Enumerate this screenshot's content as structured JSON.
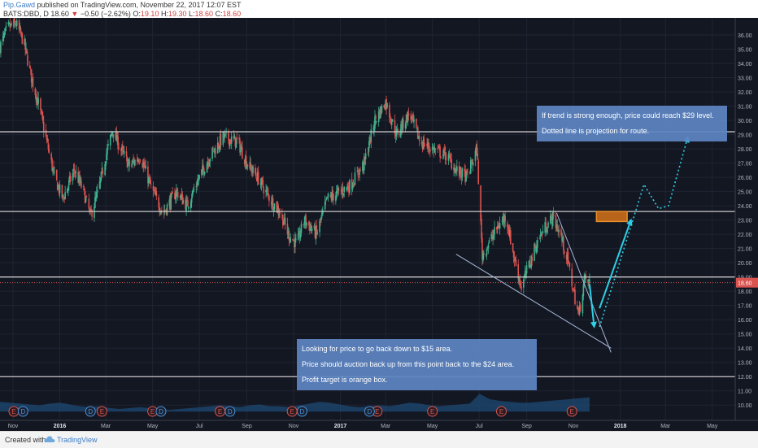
{
  "header": {
    "author": "Pip.Gawd",
    "published": "published on TradingView.com, November 22, 2017 12:07 EST",
    "symbol": "BATS:DBD, D",
    "last": "18.60",
    "change": "−0.50 (−2.62%)",
    "o_label": "O:",
    "o": "19.10",
    "h_label": "H:",
    "h": "19.30",
    "l_label": "L:",
    "l": "18.60",
    "c_label": "C:",
    "c": "18.60"
  },
  "footer": {
    "created": "Created with",
    "brand": "TradingView"
  },
  "colors": {
    "background": "#131722",
    "grid": "#1f2432",
    "up": "#3fb38e",
    "down": "#d9534f",
    "hline": "#c8c8c8",
    "price_line": "#d9534f",
    "annotation_box": "#5d86c3",
    "arrow": "#2fd0e6",
    "target_box": "#e8902a",
    "axis_text": "#b2b5be"
  },
  "chart_data": {
    "type": "candlestick",
    "symbol": "BATS:DBD",
    "interval": "D",
    "ylim": [
      9.5,
      37.2
    ],
    "x_axis": {
      "range": [
        "2015-10-15",
        "2018-05-31"
      ],
      "ticks": [
        {
          "date": "2015-11-01",
          "label": "Nov"
        },
        {
          "date": "2016-01-01",
          "label": "2016"
        },
        {
          "date": "2016-03-01",
          "label": "Mar"
        },
        {
          "date": "2016-05-01",
          "label": "May"
        },
        {
          "date": "2016-07-01",
          "label": "Jul"
        },
        {
          "date": "2016-09-01",
          "label": "Sep"
        },
        {
          "date": "2016-11-01",
          "label": "Nov"
        },
        {
          "date": "2017-01-01",
          "label": "2017"
        },
        {
          "date": "2017-03-01",
          "label": "Mar"
        },
        {
          "date": "2017-05-01",
          "label": "May"
        },
        {
          "date": "2017-07-01",
          "label": "Jul"
        },
        {
          "date": "2017-09-01",
          "label": "Sep"
        },
        {
          "date": "2017-11-01",
          "label": "Nov"
        },
        {
          "date": "2018-01-01",
          "label": "2018"
        },
        {
          "date": "2018-03-01",
          "label": "Mar"
        },
        {
          "date": "2018-05-01",
          "label": "May"
        }
      ]
    },
    "y_ticks": [
      "10.00",
      "11.00",
      "12.00",
      "13.00",
      "14.00",
      "15.00",
      "16.00",
      "17.00",
      "18.00",
      "19.00",
      "20.00",
      "21.00",
      "22.00",
      "23.00",
      "24.00",
      "25.00",
      "26.00",
      "27.00",
      "28.00",
      "29.00",
      "30.00",
      "31.00",
      "32.00",
      "33.00",
      "34.00",
      "35.00",
      "36.00"
    ],
    "last_price": {
      "value": 18.6,
      "label": "18.60"
    },
    "price_path": [
      [
        "2015-10-15",
        35.2
      ],
      [
        "2015-10-25",
        36.5
      ],
      [
        "2015-11-05",
        36.8
      ],
      [
        "2015-11-15",
        35.5
      ],
      [
        "2015-11-25",
        33.0
      ],
      [
        "2015-12-05",
        31.0
      ],
      [
        "2015-12-15",
        28.5
      ],
      [
        "2015-12-25",
        26.0
      ],
      [
        "2016-01-05",
        24.5
      ],
      [
        "2016-01-20",
        26.5
      ],
      [
        "2016-02-01",
        25.0
      ],
      [
        "2016-02-10",
        23.3
      ],
      [
        "2016-02-20",
        25.0
      ],
      [
        "2016-03-01",
        27.5
      ],
      [
        "2016-03-10",
        29.3
      ],
      [
        "2016-03-20",
        28.0
      ],
      [
        "2016-04-01",
        26.8
      ],
      [
        "2016-04-15",
        27.5
      ],
      [
        "2016-05-01",
        25.0
      ],
      [
        "2016-05-15",
        23.5
      ],
      [
        "2016-06-01",
        25.0
      ],
      [
        "2016-06-15",
        24.0
      ],
      [
        "2016-07-01",
        26.0
      ],
      [
        "2016-07-15",
        27.5
      ],
      [
        "2016-08-01",
        28.8
      ],
      [
        "2016-08-20",
        28.5
      ],
      [
        "2016-09-01",
        27.0
      ],
      [
        "2016-09-15",
        26.0
      ],
      [
        "2016-10-01",
        24.5
      ],
      [
        "2016-10-15",
        23.5
      ],
      [
        "2016-10-25",
        22.0
      ],
      [
        "2016-11-05",
        21.3
      ],
      [
        "2016-11-15",
        23.0
      ],
      [
        "2016-12-01",
        22.0
      ],
      [
        "2016-12-15",
        24.5
      ],
      [
        "2017-01-01",
        25.0
      ],
      [
        "2017-01-15",
        25.5
      ],
      [
        "2017-02-01",
        27.0
      ],
      [
        "2017-02-15",
        30.0
      ],
      [
        "2017-03-01",
        31.3
      ],
      [
        "2017-03-15",
        29.0
      ],
      [
        "2017-04-01",
        30.5
      ],
      [
        "2017-04-15",
        28.5
      ],
      [
        "2017-05-01",
        28.0
      ],
      [
        "2017-05-20",
        27.5
      ],
      [
        "2017-06-01",
        26.5
      ],
      [
        "2017-06-15",
        26.0
      ],
      [
        "2017-06-28",
        28.0
      ],
      [
        "2017-07-01",
        24.8
      ],
      [
        "2017-07-05",
        20.5
      ],
      [
        "2017-07-15",
        21.5
      ],
      [
        "2017-07-25",
        22.5
      ],
      [
        "2017-08-05",
        23.3
      ],
      [
        "2017-08-15",
        20.5
      ],
      [
        "2017-08-25",
        18.3
      ],
      [
        "2017-09-05",
        20.0
      ],
      [
        "2017-09-15",
        21.5
      ],
      [
        "2017-09-25",
        22.5
      ],
      [
        "2017-10-05",
        23.2
      ],
      [
        "2017-10-15",
        22.0
      ],
      [
        "2017-10-25",
        20.0
      ],
      [
        "2017-11-01",
        18.0
      ],
      [
        "2017-11-08",
        16.3
      ],
      [
        "2017-11-15",
        18.8
      ],
      [
        "2017-11-22",
        18.6
      ]
    ],
    "horizontal_lines": [
      29.2,
      23.6,
      19.0,
      12.0
    ],
    "trend_lines": [
      {
        "from": [
          "2017-06-01",
          20.6
        ],
        "to": [
          "2017-12-20",
          14.0
        ]
      },
      {
        "from": [
          "2017-10-10",
          23.5
        ],
        "to": [
          "2017-12-20",
          13.7
        ]
      }
    ],
    "arrows_solid": [
      {
        "from": [
          "2017-11-22",
          18.5
        ],
        "to": [
          "2017-11-28",
          15.5
        ]
      },
      {
        "from": [
          "2017-12-05",
          16.8
        ],
        "to": [
          "2018-01-15",
          23.0
        ]
      }
    ],
    "projection_dotted": [
      [
        "2017-12-05",
        15.5
      ],
      [
        "2018-02-01",
        25.5
      ],
      [
        "2018-02-20",
        23.8
      ],
      [
        "2018-03-05",
        24.0
      ],
      [
        "2018-03-30",
        28.8
      ]
    ],
    "target_box": {
      "x": [
        "2017-12-01",
        "2018-01-10"
      ],
      "y": [
        22.9,
        23.6
      ]
    },
    "annotations": [
      {
        "lines": [
          "If trend is strong enough, price could reach $29 level.",
          "Dotted line is projection for route."
        ]
      },
      {
        "lines": [
          "Looking for price to go back down to $15 area.",
          "Price should auction back up from this point back to the $24 area.",
          "Profit target is orange box."
        ]
      }
    ],
    "volume_profile": [
      0.55,
      0.5,
      0.45,
      0.4,
      0.35,
      0.45,
      0.5,
      0.4,
      0.3,
      0.25,
      0.3,
      0.2,
      0.15,
      0.2,
      0.25,
      0.2,
      0.15,
      0.1,
      0.15,
      0.2,
      0.25,
      0.3,
      0.35,
      0.3,
      0.25,
      0.35,
      0.4,
      0.3,
      0.3,
      0.25,
      0.35,
      0.45,
      0.55,
      0.5,
      0.4,
      0.3,
      0.25,
      0.3,
      0.35,
      0.3,
      0.4,
      0.5,
      0.45,
      0.35,
      0.3,
      0.35,
      0.4,
      0.45,
      1.0,
      0.7,
      0.6,
      0.55,
      0.5,
      0.5,
      0.55,
      0.6,
      0.65,
      0.7,
      0.75,
      0.8
    ],
    "earnings_markers": [
      "2015-11-02",
      "2016-02-25",
      "2016-05-01",
      "2016-07-28",
      "2016-10-30",
      "2017-02-18",
      "2017-05-01",
      "2017-07-30",
      "2017-10-30"
    ],
    "dividend_markers": [
      "2015-11-14",
      "2016-02-10",
      "2016-05-12",
      "2016-08-10",
      "2016-11-12",
      "2017-02-08"
    ]
  }
}
